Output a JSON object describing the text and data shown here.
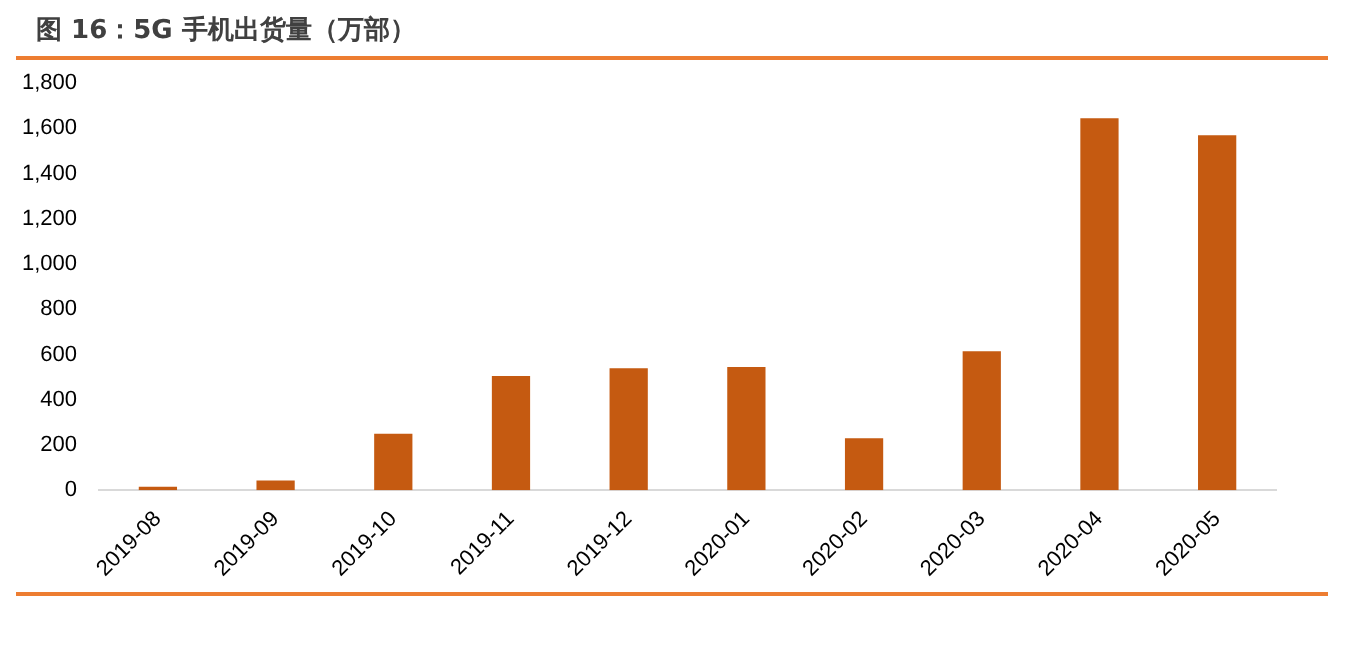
{
  "chart_data": {
    "type": "bar",
    "title": "图 16：5G 手机出货量（万部）",
    "categories": [
      "2019-08",
      "2019-09",
      "2019-10",
      "2019-11",
      "2019-12",
      "2020-01",
      "2020-02",
      "2020-03",
      "2020-04",
      "2020-05"
    ],
    "values": [
      15,
      43,
      250,
      505,
      540,
      545,
      230,
      615,
      1645,
      1570
    ],
    "color": "#c55a11",
    "ylim": [
      0,
      1800
    ],
    "yticks": [
      {
        "value": 0,
        "label": "0"
      },
      {
        "value": 200,
        "label": "200"
      },
      {
        "value": 400,
        "label": "400"
      },
      {
        "value": 600,
        "label": "600"
      },
      {
        "value": 800,
        "label": "800"
      },
      {
        "value": 1000,
        "label": "1,000"
      },
      {
        "value": 1200,
        "label": "1,200"
      },
      {
        "value": 1400,
        "label": "1,400"
      },
      {
        "value": 1600,
        "label": "1,600"
      },
      {
        "value": 1800,
        "label": "1,800"
      }
    ],
    "grid": false,
    "legend": false
  }
}
